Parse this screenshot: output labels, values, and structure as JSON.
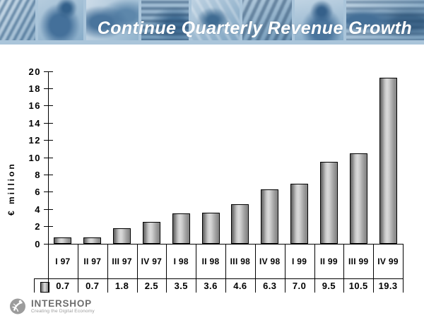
{
  "header": {
    "title": "Continue Quarterly Revenue Growth"
  },
  "chart_data": {
    "type": "bar",
    "title": "Continue Quarterly Revenue Growth",
    "xlabel": "",
    "ylabel": "€ million",
    "categories": [
      "I 97",
      "II 97",
      "III 97",
      "IV 97",
      "I 98",
      "II 98",
      "III 98",
      "IV 98",
      "I 99",
      "II 99",
      "III 99",
      "IV 99"
    ],
    "values": [
      0.7,
      0.7,
      1.8,
      2.5,
      3.5,
      3.6,
      4.6,
      6.3,
      7.0,
      9.5,
      10.5,
      19.3
    ],
    "value_labels": [
      "0.7",
      "0.7",
      "1.8",
      "2.5",
      "3.5",
      "3.6",
      "4.6",
      "6.3",
      "7.0",
      "9.5",
      "10.5",
      "19.3"
    ],
    "ylim": [
      0,
      20
    ],
    "y_ticks": [
      0,
      2,
      4,
      6,
      8,
      10,
      12,
      14,
      16,
      18,
      20
    ],
    "grid": false,
    "data_table_shown": true,
    "legend_position": "table-stub",
    "bar_border_color": "#000000",
    "bar_fill_light": "#dadada",
    "bar_fill_dark": "#5f5f5f"
  },
  "footer": {
    "brand": "INTERSHOP",
    "tagline": "Creating the Digital Economy"
  },
  "colors": {
    "header_band": "#aac5da",
    "title_text": "#ffffff",
    "background": "#ffffff"
  }
}
